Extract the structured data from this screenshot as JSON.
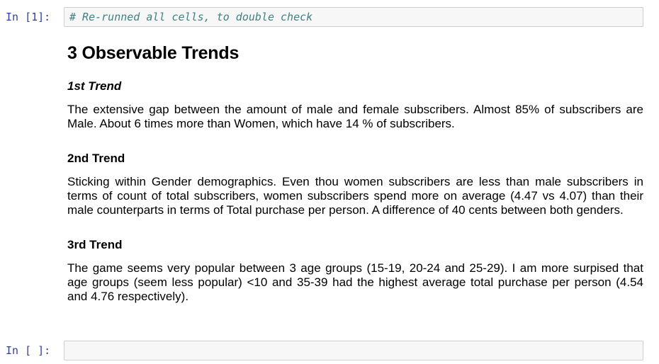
{
  "cells": {
    "first": {
      "prompt": "In [1]:",
      "code": "# Re-runned all cells, to double check"
    },
    "last": {
      "prompt": "In [ ]:",
      "code": ""
    }
  },
  "markdown": {
    "heading": "3 Observable Trends",
    "trends": [
      {
        "title": "1st Trend",
        "text": "The extensive gap between the amount of male and female subscribers. Almost 85% of subscribers are Male. About 6 times more than Women, which have 14 % of subscribers."
      },
      {
        "title": "2nd Trend",
        "text": "Sticking within Gender demographics. Even thou women subscribers are less than male subscribers in terms of count of total subscribers, women subscribers spend more on average (4.47 vs 4.07) than their male counterparts in terms of Total purchase per person. A difference of 40 cents between both genders."
      },
      {
        "title": "3rd Trend",
        "text": "The game seems very popular between 3 age groups (15-19, 20-24 and 25-29). I am more surpised that age groups (seem less popular) <10 and 35-39 had the highest average total purchase per person (4.54 and 4.76 respectively)."
      }
    ]
  }
}
